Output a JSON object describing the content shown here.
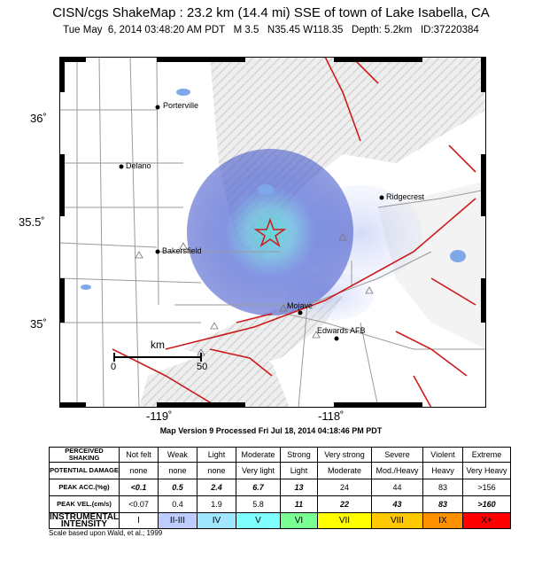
{
  "header": {
    "title": "CISN/cgs ShakeMap : 23.2 km (14.4 mi) SSE of town of Lake Isabella, CA",
    "subtitle": "Tue May  6, 2014 03:48:20 AM PDT   M 3.5   N35.45 W118.35   Depth: 5.2km   ID:37220384"
  },
  "map": {
    "lat_ticks": [
      "36˚",
      "35.5˚",
      "35˚"
    ],
    "lon_ticks": [
      "-119˚",
      "-118˚"
    ],
    "cities": [
      "Porterville",
      "Delano",
      "Ridgecrest",
      "Bakersfield",
      "Mojave",
      "Edwards AFB"
    ],
    "scalebar": {
      "label": "km",
      "start": "0",
      "end": "50"
    },
    "epicenter_symbol": "star-icon",
    "colors": {
      "intensity_blue": "#6f82e6",
      "intensity_cyan": "#6fe8e6",
      "fault_line": "#cc1b1b",
      "road": "#9a9a9a"
    }
  },
  "version_line": "Map Version 9 Processed Fri Jul 18, 2014 04:18:46 PM PDT",
  "legend": {
    "row_headers": [
      "PERCEIVED SHAKING",
      "POTENTIAL DAMAGE",
      "PEAK ACC.(%g)",
      "PEAK VEL.(cm/s)",
      "INSTRUMENTAL INTENSITY"
    ],
    "shaking": [
      "Not felt",
      "Weak",
      "Light",
      "Moderate",
      "Strong",
      "Very strong",
      "Severe",
      "Violent",
      "Extreme"
    ],
    "damage": [
      "none",
      "none",
      "none",
      "Very light",
      "Light",
      "Moderate",
      "Mod./Heavy",
      "Heavy",
      "Very Heavy"
    ],
    "peak_acc": [
      "<0.1",
      "0.5",
      "2.4",
      "6.7",
      "13",
      "24",
      "44",
      "83",
      ">156"
    ],
    "peak_vel": [
      "<0.07",
      "0.4",
      "1.9",
      "5.8",
      "11",
      "22",
      "43",
      "83",
      ">160"
    ],
    "intensity": [
      "I",
      "II-III",
      "IV",
      "V",
      "VI",
      "VII",
      "VIII",
      "IX",
      "X+"
    ],
    "intensity_colors": [
      "#ffffff",
      "#bfccff",
      "#a0e6ff",
      "#80ffff",
      "#7aff93",
      "#ffff00",
      "#ffc800",
      "#ff9100",
      "#ff0000"
    ],
    "scale_note": "Scale based upon Wald, et al.; 1999"
  }
}
